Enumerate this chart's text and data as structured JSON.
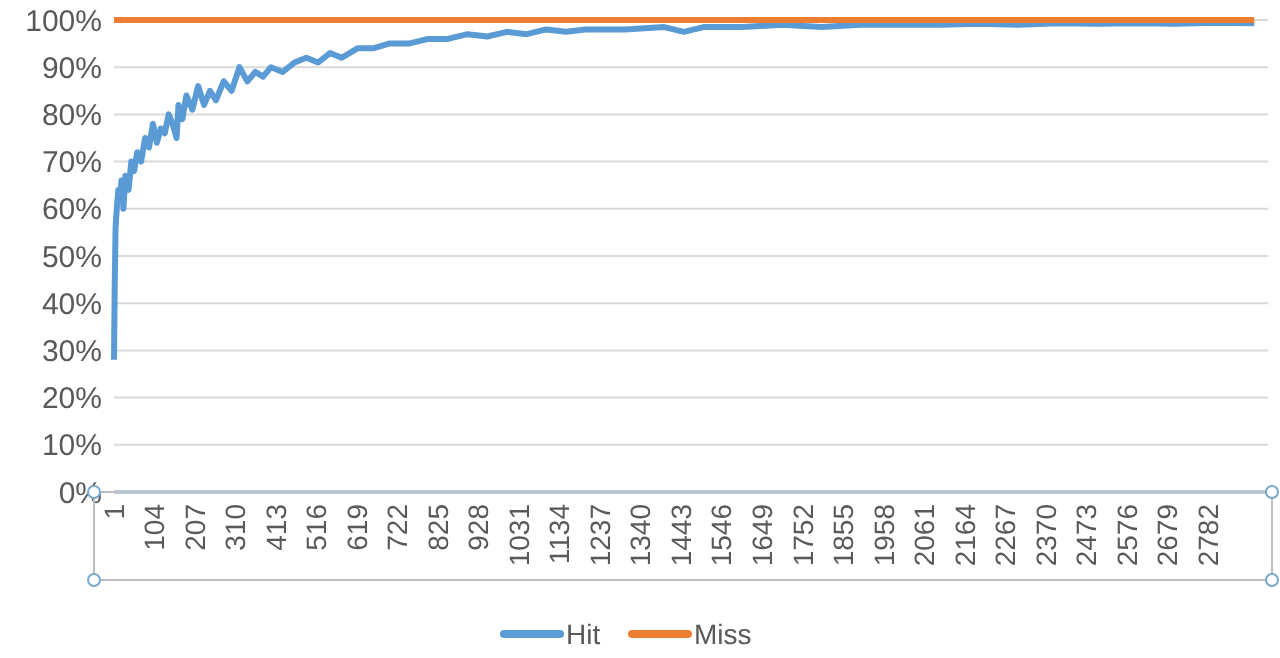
{
  "chart_data": {
    "type": "line",
    "x": [
      1,
      3,
      5,
      8,
      12,
      16,
      20,
      25,
      30,
      38,
      45,
      52,
      60,
      70,
      80,
      90,
      100,
      110,
      120,
      130,
      140,
      150,
      160,
      165,
      175,
      185,
      200,
      215,
      230,
      245,
      260,
      280,
      300,
      320,
      340,
      360,
      380,
      400,
      430,
      460,
      490,
      520,
      550,
      580,
      620,
      660,
      700,
      750,
      800,
      850,
      900,
      950,
      1000,
      1050,
      1100,
      1150,
      1200,
      1300,
      1400,
      1450,
      1500,
      1600,
      1700,
      1800,
      1900,
      2000,
      2100,
      2200,
      2300,
      2400,
      2500,
      2600,
      2700,
      2800,
      2900
    ],
    "series": [
      {
        "name": "Hit",
        "color": "#5b9bd5",
        "values": [
          28,
          45,
          56,
          60,
          64,
          62,
          66,
          60,
          67,
          64,
          70,
          68,
          72,
          70,
          75,
          73,
          78,
          74,
          77,
          76,
          80,
          78,
          75,
          82,
          79,
          84,
          81,
          86,
          82,
          85,
          83,
          87,
          85,
          90,
          87,
          89,
          88,
          90,
          89,
          91,
          92,
          91,
          93,
          92,
          94,
          94,
          95,
          95,
          96,
          96,
          97,
          96.5,
          97.5,
          97,
          98,
          97.5,
          98,
          98,
          98.5,
          97.5,
          98.5,
          98.5,
          99,
          98.5,
          99,
          99,
          99,
          99.2,
          99,
          99.3,
          99.2,
          99.3,
          99.2,
          99.4,
          99.3
        ]
      },
      {
        "name": "Miss",
        "color": "#ed7d31",
        "values": [
          100,
          100,
          100,
          100,
          100,
          100,
          100,
          100,
          100,
          100,
          100,
          100,
          100,
          100,
          100,
          100,
          100,
          100,
          100,
          100,
          100,
          100,
          100,
          100,
          100,
          100,
          100,
          100,
          100,
          100,
          100,
          100,
          100,
          100,
          100,
          100,
          100,
          100,
          100,
          100,
          100,
          100,
          100,
          100,
          100,
          100,
          100,
          100,
          100,
          100,
          100,
          100,
          100,
          100,
          100,
          100,
          100,
          100,
          100,
          100,
          100,
          100,
          100,
          100,
          100,
          100,
          100,
          100,
          100,
          100,
          100,
          100,
          100,
          100,
          100
        ]
      }
    ],
    "xlim": [
      1,
      2935
    ],
    "xticks": [
      1,
      104,
      207,
      310,
      413,
      516,
      619,
      722,
      825,
      928,
      1031,
      1134,
      1237,
      1340,
      1443,
      1546,
      1649,
      1752,
      1855,
      1958,
      2061,
      2164,
      2267,
      2370,
      2473,
      2576,
      2679,
      2782
    ],
    "ylim": [
      0,
      100
    ],
    "yticks": [
      {
        "value": 0,
        "label": "0%"
      },
      {
        "value": 10,
        "label": "10%"
      },
      {
        "value": 20,
        "label": "20%"
      },
      {
        "value": 30,
        "label": "30%"
      },
      {
        "value": 40,
        "label": "40%"
      },
      {
        "value": 50,
        "label": "50%"
      },
      {
        "value": 60,
        "label": "60%"
      },
      {
        "value": 70,
        "label": "70%"
      },
      {
        "value": 80,
        "label": "80%"
      },
      {
        "value": 90,
        "label": "90%"
      },
      {
        "value": 100,
        "label": "100%"
      }
    ],
    "grid": "y",
    "legend": "bottom",
    "marker": "none",
    "line_style": "solid"
  }
}
